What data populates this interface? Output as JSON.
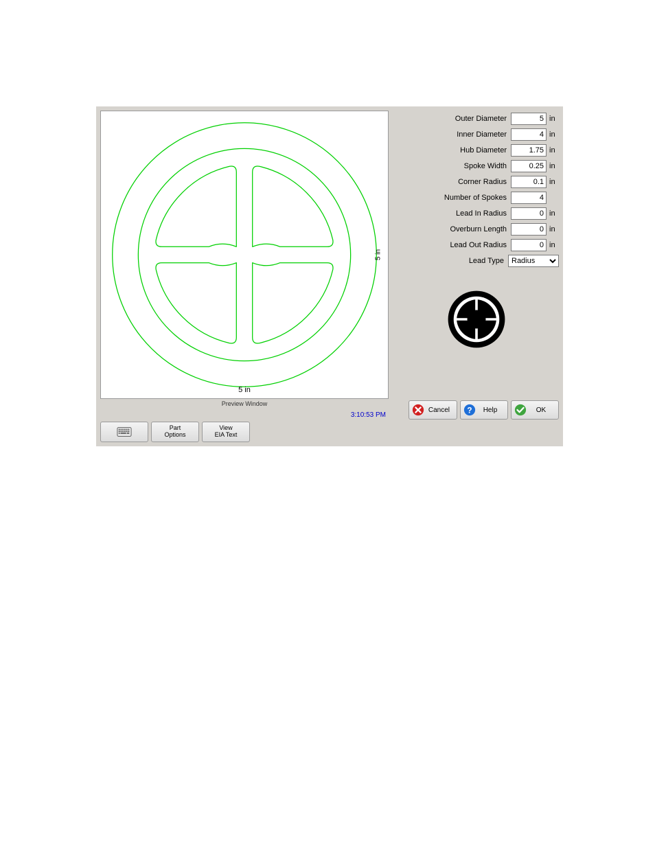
{
  "preview": {
    "width_label": "5 in",
    "height_label": "5 in",
    "caption": "Preview Window",
    "stroke_color": "#00d000",
    "bg_color": "#ffffff"
  },
  "timestamp": "3:10:53 PM",
  "params": [
    {
      "label": "Outer Diameter",
      "value": "5",
      "unit": "in"
    },
    {
      "label": "Inner Diameter",
      "value": "4",
      "unit": "in"
    },
    {
      "label": "Hub Diameter",
      "value": "1.75",
      "unit": "in"
    },
    {
      "label": "Spoke Width",
      "value": "0.25",
      "unit": "in"
    },
    {
      "label": "Corner Radius",
      "value": "0.1",
      "unit": "in"
    },
    {
      "label": "Number of Spokes",
      "value": "4",
      "unit": ""
    },
    {
      "label": "Lead In Radius",
      "value": "0",
      "unit": "in"
    },
    {
      "label": "Overburn Length",
      "value": "0",
      "unit": "in"
    },
    {
      "label": "Lead Out Radius",
      "value": "0",
      "unit": "in"
    }
  ],
  "lead_type": {
    "label": "Lead Type",
    "value": "Radius"
  },
  "buttons": {
    "cancel": "Cancel",
    "help": "Help",
    "ok": "OK"
  },
  "bottom_buttons": {
    "keyboard": "",
    "part_options": "Part\nOptions",
    "view_eia": "View\nEIA Text"
  },
  "colors": {
    "panel_bg": "#d6d3ce",
    "cancel_icon": "#d12020",
    "help_icon": "#1e6fd8",
    "ok_icon": "#3fa53f"
  }
}
